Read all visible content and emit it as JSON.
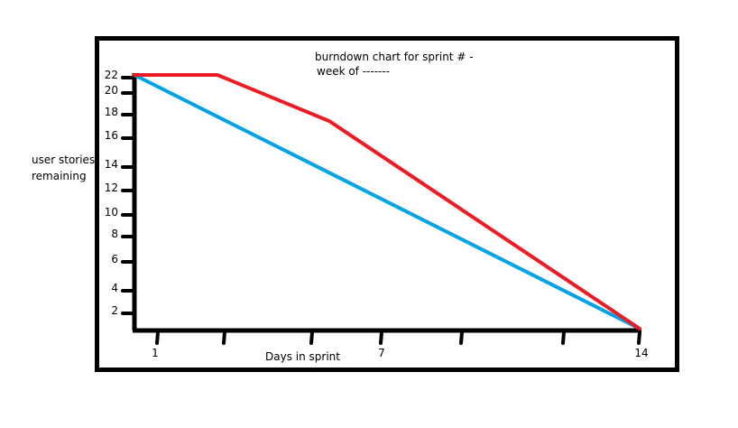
{
  "chart_data": {
    "type": "line",
    "title": "burndown chart for sprint # -",
    "subtitle": "week of -------",
    "xlabel": "Days in sprint",
    "ylabel": "user stories remaining",
    "xlim": [
      0,
      14
    ],
    "ylim": [
      0,
      22
    ],
    "x_tick_labels": [
      {
        "value": 1,
        "label": "1"
      },
      {
        "value": 7,
        "label": "7"
      },
      {
        "value": 14,
        "label": "14"
      }
    ],
    "y_tick_labels": [
      "2",
      "4",
      "6",
      "8",
      "10",
      "12",
      "14",
      "16",
      "18",
      "20",
      "22"
    ],
    "grid": false,
    "legend": "none",
    "series": [
      {
        "color": "#ed1c24",
        "points": [
          [
            0,
            22
          ],
          [
            2.3,
            22
          ],
          [
            5.4,
            18
          ],
          [
            14,
            0
          ]
        ]
      },
      {
        "color": "#00a2e8",
        "points": [
          [
            0,
            22
          ],
          [
            14,
            0
          ]
        ]
      }
    ]
  }
}
